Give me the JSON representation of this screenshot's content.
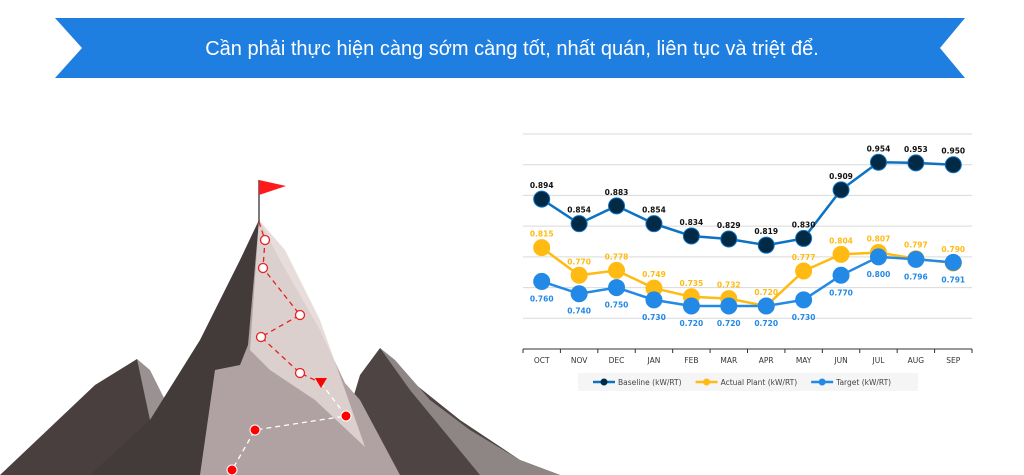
{
  "banner": {
    "text": "Cần phải thực hiện càng sớm càng tốt, nhất quán, liên tục và triệt để.",
    "color": "#1f7fe0"
  },
  "illustration": {
    "subject": "mountain-with-flag-and-climbing-path",
    "flag_color": "#ff1a1a"
  },
  "chart_data": {
    "type": "line",
    "title": "",
    "xlabel": "",
    "ylabel": "",
    "ylim": [
      0.65,
      1.0
    ],
    "grid": true,
    "legend_placement": "bottom",
    "categories": [
      "OCT",
      "NOV",
      "DEC",
      "JAN",
      "FEB",
      "MAR",
      "APR",
      "MAY",
      "JUN",
      "JUL",
      "AUG",
      "SEP"
    ],
    "series": [
      {
        "name": "Baseline (kW/RT)",
        "color": "#0b72c4",
        "marker_color": "#022a44",
        "label_color": "#111111",
        "values": [
          0.894,
          0.854,
          0.883,
          0.854,
          0.834,
          0.829,
          0.819,
          0.83,
          0.909,
          0.954,
          0.953,
          0.95
        ],
        "labels": [
          "0.894",
          "0.854",
          "0.883",
          "0.854",
          "0.834",
          "0.829",
          "0.819",
          "0.830",
          "0.909",
          "0.954",
          "0.953",
          "0.950"
        ]
      },
      {
        "name": "Actual Plant (kW/RT)",
        "color": "#ffbb13",
        "marker_color": "#ffbb13",
        "label_color": "#ffbb13",
        "values": [
          0.815,
          0.77,
          0.778,
          0.749,
          0.735,
          0.732,
          0.72,
          0.777,
          0.804,
          0.807,
          0.797,
          0.79
        ],
        "labels": [
          "0.815",
          "0.770",
          "0.778",
          "0.749",
          "0.735",
          "0.732",
          "0.720",
          "0.777",
          "0.804",
          "0.807",
          "0.797",
          "0.790"
        ]
      },
      {
        "name": "Target (kW/RT)",
        "color": "#2389e6",
        "marker_color": "#2389e6",
        "label_color": "#2389e6",
        "values": [
          0.76,
          0.74,
          0.75,
          0.73,
          0.72,
          0.72,
          0.72,
          0.73,
          0.77,
          0.8,
          0.796,
          0.791
        ],
        "labels": [
          "0.760",
          "0.740",
          "0.750",
          "0.730",
          "0.720",
          "0.720",
          "0.720",
          "0.730",
          "0.770",
          "0.800",
          "0.796",
          "0.791"
        ]
      }
    ]
  }
}
